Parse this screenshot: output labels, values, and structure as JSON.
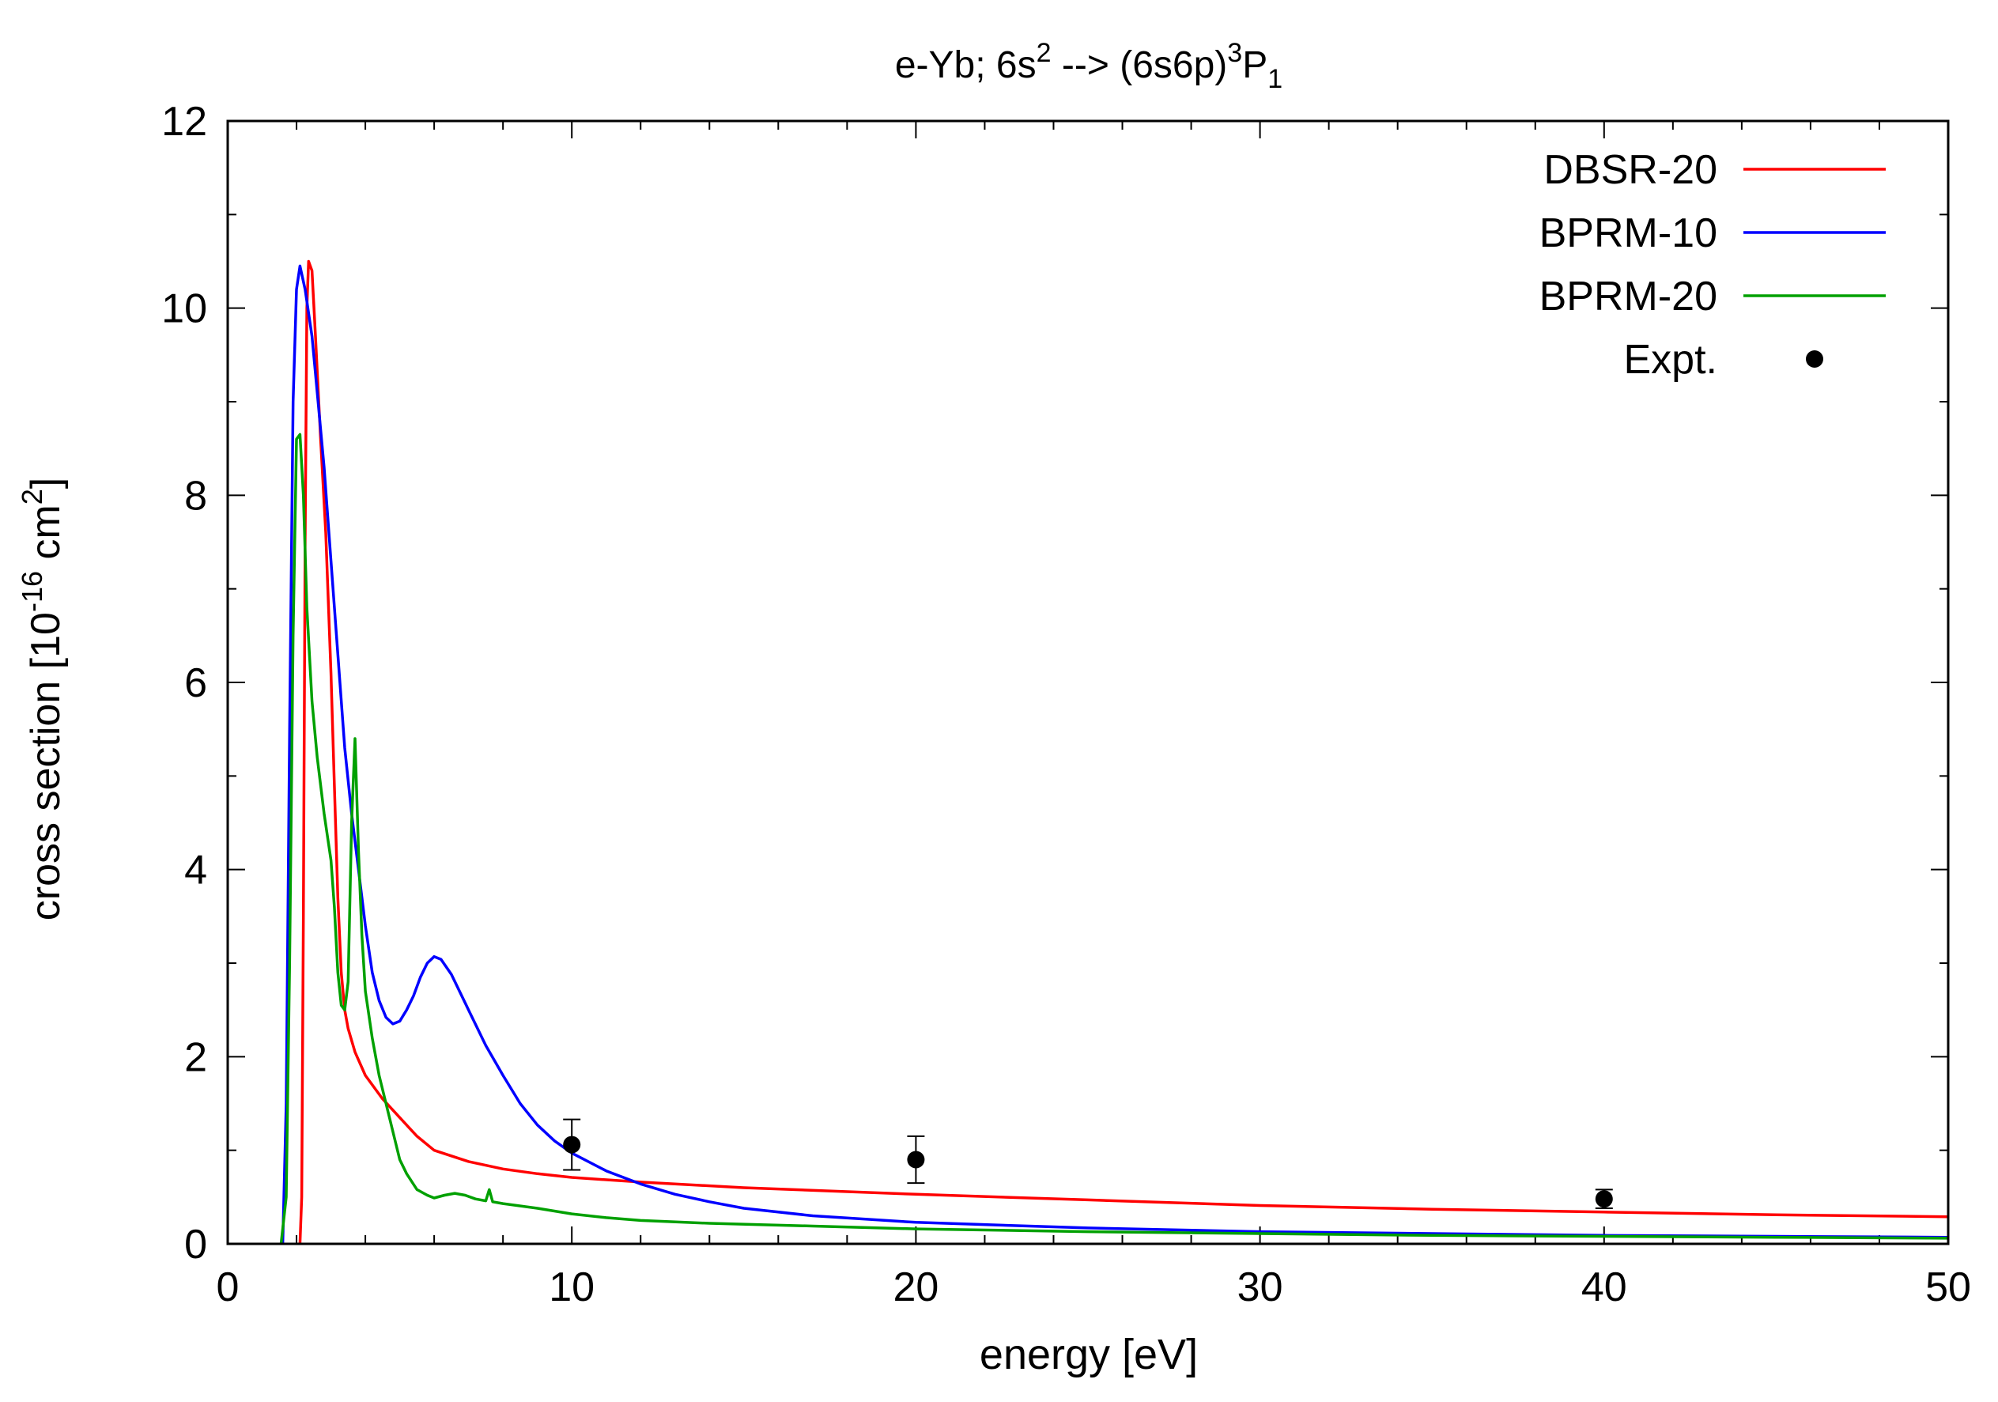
{
  "chart_data": {
    "type": "line",
    "title": {
      "prefix": "e-Yb; 6s",
      "sup1": "2",
      "mid": " --> (6s6p)",
      "sup2": "3",
      "main2": "P",
      "sub": "1"
    },
    "xlabel": "energy [eV]",
    "ylabel": {
      "prefix": "cross section [10",
      "sup1": "-16",
      "mid": " cm",
      "sup2": "2",
      "suffix": "]"
    },
    "xlim": [
      0,
      50
    ],
    "ylim": [
      0,
      12
    ],
    "xticks": [
      0,
      10,
      20,
      30,
      40,
      50
    ],
    "yticks": [
      0,
      2,
      4,
      6,
      8,
      10,
      12
    ],
    "grid": false,
    "legend_position": "top-right",
    "series": [
      {
        "name": "DBSR-20",
        "color": "#ff0000",
        "points": [
          [
            2.1,
            0
          ],
          [
            2.15,
            0.5
          ],
          [
            2.2,
            3.5
          ],
          [
            2.25,
            7.5
          ],
          [
            2.3,
            10.0
          ],
          [
            2.35,
            10.5
          ],
          [
            2.45,
            10.4
          ],
          [
            2.55,
            9.7
          ],
          [
            2.7,
            8.6
          ],
          [
            2.85,
            7.6
          ],
          [
            3.0,
            6.1
          ],
          [
            3.1,
            4.9
          ],
          [
            3.2,
            3.7
          ],
          [
            3.3,
            2.9
          ],
          [
            3.4,
            2.5
          ],
          [
            3.5,
            2.3
          ],
          [
            3.7,
            2.05
          ],
          [
            4.0,
            1.8
          ],
          [
            4.5,
            1.55
          ],
          [
            5.0,
            1.35
          ],
          [
            5.5,
            1.15
          ],
          [
            6.0,
            1.0
          ],
          [
            7.0,
            0.88
          ],
          [
            8.0,
            0.8
          ],
          [
            9.0,
            0.75
          ],
          [
            10,
            0.71
          ],
          [
            12,
            0.66
          ],
          [
            15,
            0.6
          ],
          [
            20,
            0.53
          ],
          [
            25,
            0.47
          ],
          [
            30,
            0.41
          ],
          [
            35,
            0.37
          ],
          [
            40,
            0.34
          ],
          [
            45,
            0.31
          ],
          [
            50,
            0.29
          ]
        ]
      },
      {
        "name": "BPRM-10",
        "color": "#0000ff",
        "points": [
          [
            1.6,
            0
          ],
          [
            1.7,
            1.5
          ],
          [
            1.8,
            5.5
          ],
          [
            1.9,
            9.0
          ],
          [
            2.0,
            10.2
          ],
          [
            2.1,
            10.45
          ],
          [
            2.25,
            10.2
          ],
          [
            2.45,
            9.7
          ],
          [
            2.6,
            9.1
          ],
          [
            2.8,
            8.3
          ],
          [
            3.0,
            7.3
          ],
          [
            3.2,
            6.3
          ],
          [
            3.4,
            5.3
          ],
          [
            3.6,
            4.6
          ],
          [
            3.8,
            4.0
          ],
          [
            4.0,
            3.4
          ],
          [
            4.2,
            2.9
          ],
          [
            4.4,
            2.6
          ],
          [
            4.6,
            2.42
          ],
          [
            4.8,
            2.35
          ],
          [
            5.0,
            2.38
          ],
          [
            5.2,
            2.5
          ],
          [
            5.4,
            2.65
          ],
          [
            5.6,
            2.85
          ],
          [
            5.8,
            3.0
          ],
          [
            6.0,
            3.07
          ],
          [
            6.2,
            3.04
          ],
          [
            6.5,
            2.88
          ],
          [
            7.0,
            2.5
          ],
          [
            7.5,
            2.12
          ],
          [
            8.0,
            1.8
          ],
          [
            8.5,
            1.5
          ],
          [
            9.0,
            1.27
          ],
          [
            9.5,
            1.1
          ],
          [
            10,
            0.97
          ],
          [
            11,
            0.78
          ],
          [
            12,
            0.64
          ],
          [
            13,
            0.53
          ],
          [
            14,
            0.45
          ],
          [
            15,
            0.38
          ],
          [
            17,
            0.3
          ],
          [
            20,
            0.23
          ],
          [
            25,
            0.17
          ],
          [
            30,
            0.13
          ],
          [
            35,
            0.11
          ],
          [
            40,
            0.09
          ],
          [
            45,
            0.08
          ],
          [
            50,
            0.07
          ]
        ]
      },
      {
        "name": "BPRM-20",
        "color": "#00a000",
        "points": [
          [
            1.55,
            0
          ],
          [
            1.7,
            0.5
          ],
          [
            1.8,
            3.0
          ],
          [
            1.9,
            6.5
          ],
          [
            2.0,
            8.6
          ],
          [
            2.1,
            8.65
          ],
          [
            2.2,
            8.0
          ],
          [
            2.3,
            6.8
          ],
          [
            2.45,
            5.8
          ],
          [
            2.6,
            5.2
          ],
          [
            2.8,
            4.6
          ],
          [
            3.0,
            4.1
          ],
          [
            3.1,
            3.6
          ],
          [
            3.2,
            2.9
          ],
          [
            3.3,
            2.55
          ],
          [
            3.4,
            2.5
          ],
          [
            3.5,
            2.8
          ],
          [
            3.6,
            4.5
          ],
          [
            3.7,
            5.4
          ],
          [
            3.8,
            4.2
          ],
          [
            3.9,
            3.3
          ],
          [
            4.0,
            2.7
          ],
          [
            4.2,
            2.2
          ],
          [
            4.4,
            1.8
          ],
          [
            4.6,
            1.5
          ],
          [
            4.8,
            1.2
          ],
          [
            5.0,
            0.9
          ],
          [
            5.2,
            0.75
          ],
          [
            5.5,
            0.58
          ],
          [
            5.8,
            0.52
          ],
          [
            6.0,
            0.49
          ],
          [
            6.3,
            0.52
          ],
          [
            6.6,
            0.54
          ],
          [
            6.9,
            0.52
          ],
          [
            7.2,
            0.48
          ],
          [
            7.5,
            0.46
          ],
          [
            7.6,
            0.58
          ],
          [
            7.7,
            0.45
          ],
          [
            8.0,
            0.43
          ],
          [
            9.0,
            0.38
          ],
          [
            10,
            0.32
          ],
          [
            11,
            0.28
          ],
          [
            12,
            0.25
          ],
          [
            14,
            0.22
          ],
          [
            17,
            0.19
          ],
          [
            20,
            0.16
          ],
          [
            25,
            0.13
          ],
          [
            30,
            0.11
          ],
          [
            35,
            0.09
          ],
          [
            40,
            0.08
          ],
          [
            45,
            0.07
          ],
          [
            50,
            0.06
          ]
        ]
      },
      {
        "name": "Expt.",
        "color": "#000000",
        "points": [
          [
            10,
            1.06
          ],
          [
            20,
            0.9
          ],
          [
            40,
            0.48
          ]
        ],
        "errors": [
          0.27,
          0.25,
          0.1
        ]
      }
    ]
  }
}
